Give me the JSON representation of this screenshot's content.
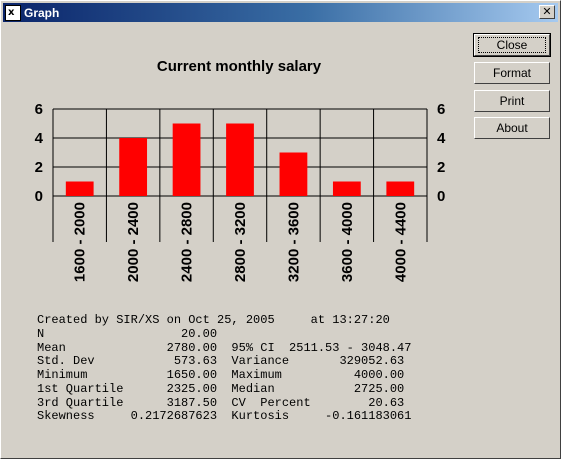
{
  "window": {
    "title": "Graph",
    "close_glyph": "✕"
  },
  "buttons": {
    "close": "Close",
    "format": "Format",
    "print": "Print",
    "about": "About"
  },
  "chart_data": {
    "type": "bar",
    "title": "Current monthly salary",
    "categories": [
      "1600 - 2000",
      "2000 - 2400",
      "2400 - 2800",
      "2800 - 3200",
      "3200 - 3600",
      "3600 - 4000",
      "4000 - 4400"
    ],
    "values": [
      1,
      4,
      5,
      5,
      3,
      1,
      1
    ],
    "ylim": [
      0,
      6
    ],
    "yticks": [
      "0",
      "2",
      "4",
      "6"
    ],
    "bar_color": "#ff0000",
    "grid": true
  },
  "stats_text": [
    "Created by SIR/XS on Oct 25, 2005     at 13:27:20",
    "N                   20.00",
    "Mean              2780.00  95% CI  2511.53 - 3048.47",
    "Std. Dev           573.63  Variance       329052.63",
    "Minimum           1650.00  Maximum          4000.00",
    "1st Quartile      2325.00  Median           2725.00",
    "3rd Quartile      3187.50  CV  Percent        20.63",
    "Skewness     0.2172687623  Kurtosis     -0.161183061"
  ]
}
